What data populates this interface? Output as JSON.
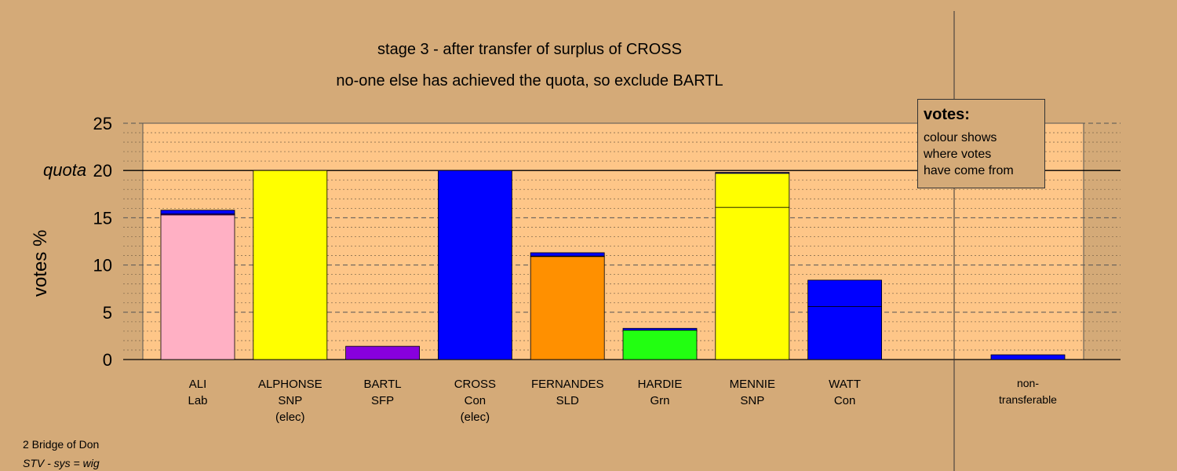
{
  "title_line1": "stage 3 - after transfer of surplus of CROSS",
  "title_line2": "no-one else has achieved the quota, so exclude BARTL",
  "legend": {
    "heading": "votes:",
    "lines": [
      "colour shows",
      "where votes",
      "have come from"
    ]
  },
  "footer": {
    "ward": "2 Bridge of Don",
    "system": "STV - sys = wig"
  },
  "colors": {
    "background": "#d4aa78",
    "plot_area": "#fec688",
    "Lab": "#ffb0c4",
    "SNP": "#ffff00",
    "SFP": "#8800dd",
    "Con": "#0000ff",
    "SLD": "#ff9000",
    "Grn": "#22ff11",
    "Con_dark": "#1a2f8f"
  },
  "chart_data": {
    "type": "bar",
    "stacked": true,
    "ylabel": "votes %",
    "ylim": [
      0,
      25
    ],
    "yticks": [
      0,
      5,
      10,
      15,
      20,
      25
    ],
    "quota": 20,
    "quota_label": "quota",
    "grid": "dashed major every 5, dotted minor every 1",
    "candidates": [
      {
        "name": "ALI",
        "party": "Lab",
        "note": "",
        "total": 15.8,
        "segments": [
          {
            "from": "Lab",
            "value": 15.3
          },
          {
            "from": "SFP",
            "value": 0.1
          },
          {
            "from": "Con",
            "value": 0.4
          }
        ]
      },
      {
        "name": "ALPHONSE",
        "party": "SNP",
        "note": "(elec)",
        "total": 20.0,
        "segments": [
          {
            "from": "SNP",
            "value": 20.0
          }
        ]
      },
      {
        "name": "BARTL",
        "party": "SFP",
        "note": "",
        "total": 1.4,
        "segments": [
          {
            "from": "SFP",
            "value": 1.4
          }
        ]
      },
      {
        "name": "CROSS",
        "party": "Con",
        "note": "(elec)",
        "total": 20.0,
        "segments": [
          {
            "from": "Con",
            "value": 20.0
          }
        ]
      },
      {
        "name": "FERNANDES",
        "party": "SLD",
        "note": "",
        "total": 11.3,
        "segments": [
          {
            "from": "SLD",
            "value": 10.9
          },
          {
            "from": "SFP",
            "value": 0.05
          },
          {
            "from": "Con",
            "value": 0.35
          }
        ]
      },
      {
        "name": "HARDIE",
        "party": "Grn",
        "note": "",
        "total": 3.3,
        "segments": [
          {
            "from": "Grn",
            "value": 3.1
          },
          {
            "from": "Con",
            "value": 0.2
          }
        ]
      },
      {
        "name": "MENNIE",
        "party": "SNP",
        "note": "",
        "total": 19.8,
        "segments": [
          {
            "from": "SNP",
            "value": 16.1
          },
          {
            "from": "SNP",
            "value": 3.6
          },
          {
            "from": "Con",
            "value": 0.1
          }
        ]
      },
      {
        "name": "WATT",
        "party": "Con",
        "note": "",
        "total": 8.4,
        "segments": [
          {
            "from": "Con",
            "value": 5.6
          },
          {
            "from": "Con",
            "value": 2.8
          }
        ]
      }
    ],
    "non_transferable": {
      "label_line1": "non-",
      "label_line2": "transferable",
      "total": 0.5,
      "segments": [
        {
          "from": "Con",
          "value": 0.5
        }
      ]
    }
  }
}
